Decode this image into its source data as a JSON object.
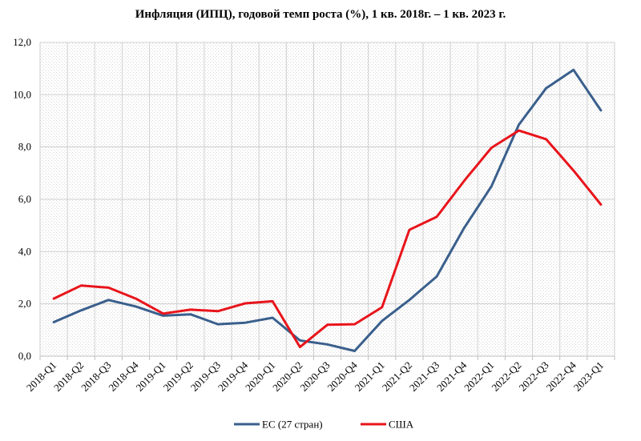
{
  "chart_data": {
    "type": "line",
    "title": "Инфляция (ИПЦ), годовой темп роста (%), 1 кв. 2018г. – 1 кв. 2023 г.",
    "categories": [
      "2018-Q1",
      "2018-Q2",
      "2018-Q3",
      "2018-Q4",
      "2019-Q1",
      "2019-Q2",
      "2019-Q3",
      "2019-Q4",
      "2020-Q1",
      "2020-Q2",
      "2020-Q3",
      "2020-Q4",
      "2021-Q1",
      "2021-Q2",
      "2021-Q3",
      "2021-Q4",
      "2022-Q1",
      "2022-Q2",
      "2022-Q3",
      "2022-Q4",
      "2023-Q1"
    ],
    "series": [
      {
        "name": "ЕС (27 стран)",
        "color": "#3A5F8C",
        "values": [
          1.3,
          1.75,
          2.15,
          1.9,
          1.55,
          1.6,
          1.22,
          1.28,
          1.47,
          0.6,
          0.45,
          0.2,
          1.35,
          2.15,
          3.05,
          4.9,
          6.5,
          8.85,
          10.25,
          10.95,
          9.4
        ]
      },
      {
        "name": "США",
        "color": "#E8141B",
        "values": [
          2.2,
          2.7,
          2.62,
          2.2,
          1.63,
          1.78,
          1.72,
          2.02,
          2.1,
          0.35,
          1.2,
          1.22,
          1.87,
          4.83,
          5.33,
          6.7,
          7.97,
          8.63,
          8.3,
          7.1,
          5.8
        ]
      }
    ],
    "y_tick_labels": [
      "0,0",
      "2,0",
      "4,0",
      "6,0",
      "8,0",
      "10,0",
      "12,0"
    ],
    "ylim": [
      0,
      12
    ],
    "grid": true,
    "legend_position": "bottom-center"
  }
}
